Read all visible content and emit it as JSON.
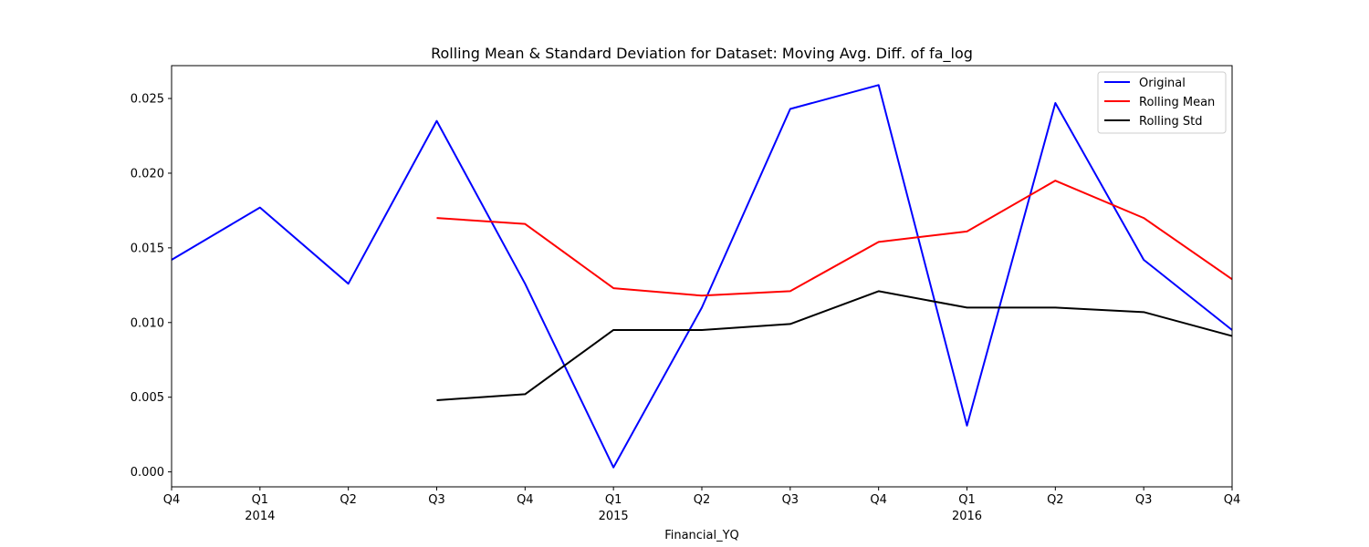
{
  "chart_data": {
    "type": "line",
    "title": "Rolling Mean & Standard Deviation for Dataset: Moving Avg. Diff. of fa_log",
    "xlabel": "Financial_YQ",
    "ylabel": "",
    "categories": [
      "Q4",
      "Q1",
      "Q2",
      "Q3",
      "Q4",
      "Q1",
      "Q2",
      "Q3",
      "Q4",
      "Q1",
      "Q2",
      "Q3",
      "Q4"
    ],
    "year_labels": [
      "",
      "2014",
      "",
      "",
      "",
      "2015",
      "",
      "",
      "",
      "2016",
      "",
      "",
      ""
    ],
    "ylim": [
      -0.001,
      0.0272
    ],
    "yticks": [
      0.0,
      0.005,
      0.01,
      0.015,
      0.02,
      0.025
    ],
    "ytick_labels": [
      "0.000",
      "0.005",
      "0.010",
      "0.015",
      "0.020",
      "0.025"
    ],
    "grid": false,
    "legend_position": "top-right",
    "series": [
      {
        "name": "Original",
        "color": "#0000ff",
        "values": [
          0.0142,
          0.0177,
          0.0126,
          0.0235,
          0.0126,
          0.0003,
          0.011,
          0.0243,
          0.0259,
          0.0031,
          0.0247,
          0.0142,
          0.0095
        ]
      },
      {
        "name": "Rolling Mean",
        "color": "#ff0000",
        "values": [
          null,
          null,
          null,
          0.017,
          0.0166,
          0.0123,
          0.0118,
          0.0121,
          0.0154,
          0.0161,
          0.0195,
          0.017,
          0.0129
        ]
      },
      {
        "name": "Rolling Std",
        "color": "#000000",
        "values": [
          null,
          null,
          null,
          0.0048,
          0.0052,
          0.0095,
          0.0095,
          0.0099,
          0.0121,
          0.011,
          0.011,
          0.0107,
          0.0091
        ]
      }
    ]
  }
}
